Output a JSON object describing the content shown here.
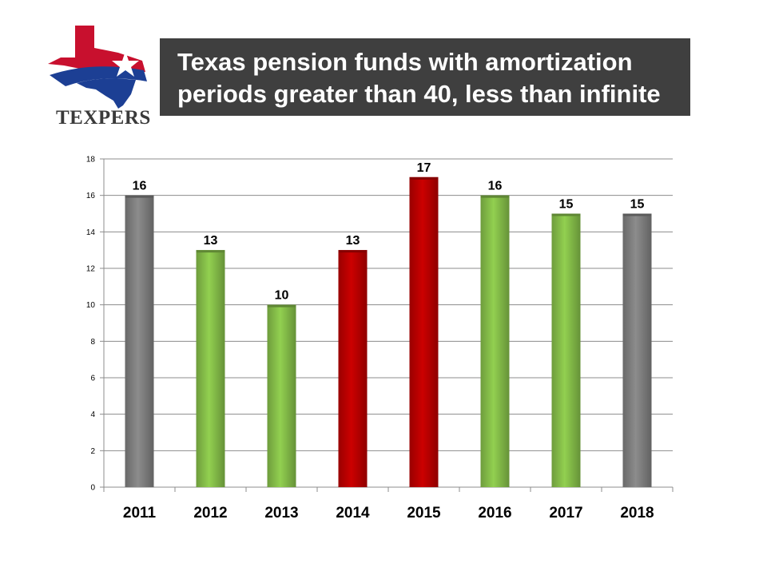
{
  "logo": {
    "text": "TEXPERS"
  },
  "title": {
    "line1": "Texas pension funds with amortization",
    "line2": "periods greater than 40, less than infinite"
  },
  "colors": {
    "gray": "#8c8c8c",
    "green": "#92d050",
    "red": "#cc0000",
    "title_bg": "#3f3f3f",
    "logo_red": "#c8102e",
    "logo_blue": "#1c3f94"
  },
  "chart_data": {
    "type": "bar",
    "categories": [
      "2011",
      "2012",
      "2013",
      "2014",
      "2015",
      "2016",
      "2017",
      "2018"
    ],
    "values": [
      16,
      13,
      10,
      13,
      17,
      16,
      15,
      15
    ],
    "bar_colors": [
      "gray",
      "green",
      "green",
      "red",
      "red",
      "green",
      "green",
      "gray"
    ],
    "data_labels": [
      "16",
      "13",
      "10",
      "13",
      "17",
      "16",
      "15",
      "15"
    ],
    "ylim": [
      0,
      18
    ],
    "yticks": [
      0,
      2,
      4,
      6,
      8,
      10,
      12,
      14,
      16,
      18
    ],
    "ytick_labels": [
      "0",
      "2",
      "4",
      "6",
      "8",
      "10",
      "12",
      "14",
      "16",
      "18"
    ],
    "title": "Texas pension funds with amortization periods greater than 40, less than infinite",
    "xlabel": "",
    "ylabel": "",
    "grid": true,
    "legend": "none"
  }
}
